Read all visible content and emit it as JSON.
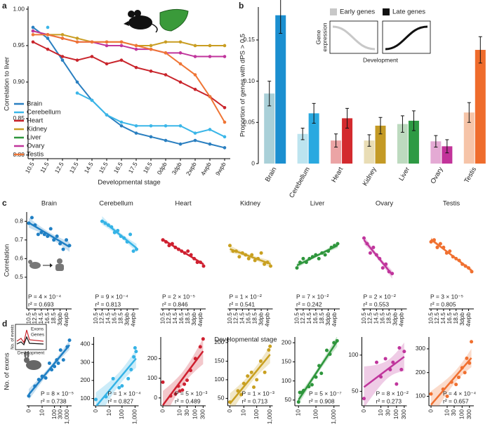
{
  "chart_data": [
    {
      "type": "line",
      "panel": "a",
      "y_label": "Correlation to liver",
      "x_label": "Developmental stage",
      "categories": [
        "10.5",
        "11.5",
        "12.5",
        "13.5",
        "14.5",
        "15.5",
        "16.5",
        "17.5",
        "18.5",
        "0dpb",
        "3dpb",
        "2wpb",
        "4wpb",
        "9wpb"
      ],
      "ylim": [
        0.795,
        1.0
      ],
      "yticks": [
        {
          "value": 0.8,
          "label": "0.80"
        },
        0.85,
        {
          "value": 0.9,
          "label": "0.90"
        },
        0.95,
        {
          "value": 1,
          "label": "1.00"
        }
      ],
      "legend": "lower left",
      "series": [
        {
          "name": "Brain",
          "color": "#2a7fc0",
          "values": [
            0.975,
            0.96,
            0.93,
            0.9,
            0.875,
            0.855,
            0.84,
            0.83,
            0.825,
            0.82,
            0.815,
            0.82,
            0.815,
            0.81
          ]
        },
        {
          "name": "Cerebellum",
          "color": "#3ab6e8",
          "values": [
            null,
            0.975,
            null,
            0.885,
            0.875,
            0.855,
            0.845,
            0.84,
            0.84,
            0.84,
            0.84,
            0.83,
            0.835,
            0.825
          ]
        },
        {
          "name": "Heart",
          "color": "#c9252c",
          "values": [
            0.955,
            0.945,
            0.935,
            0.93,
            0.935,
            0.925,
            0.93,
            0.92,
            0.915,
            0.91,
            0.9,
            0.89,
            0.88,
            0.865
          ]
        },
        {
          "name": "Kidney",
          "color": "#c99d22",
          "values": [
            0.97,
            0.965,
            0.965,
            0.96,
            0.955,
            0.955,
            0.955,
            0.95,
            0.95,
            0.955,
            0.955,
            0.95,
            0.95,
            0.95
          ]
        },
        {
          "name": "Liver",
          "color": "#2e963c",
          "values": [
            null,
            null,
            null,
            null,
            null,
            null,
            null,
            null,
            null,
            null,
            null,
            null,
            null,
            null
          ]
        },
        {
          "name": "Ovary",
          "color": "#c0359c",
          "values": [
            0.97,
            0.965,
            0.96,
            0.955,
            0.955,
            0.95,
            0.95,
            0.945,
            0.945,
            0.94,
            0.94,
            0.935,
            0.935,
            0.935
          ]
        },
        {
          "name": "Testis",
          "color": "#ef7535",
          "values": [
            0.965,
            0.965,
            0.96,
            0.955,
            0.955,
            0.955,
            0.955,
            0.95,
            0.945,
            0.94,
            0.925,
            0.91,
            0.88,
            0.845
          ]
        }
      ]
    },
    {
      "type": "bar",
      "panel": "b",
      "y_label": "Proportion of genes with dPS > 0.5",
      "categories": [
        "Brain",
        "Cerebellum",
        "Heart",
        "Kidney",
        "Liver",
        "Ovary",
        "Testis"
      ],
      "ylim": [
        0,
        0.19
      ],
      "yticks": [
        0,
        0.05,
        {
          "value": 0.1,
          "label": "0.10"
        },
        0.15
      ],
      "legend": "upper right",
      "inset": {
        "y_label": [
          "Gene",
          "expression"
        ],
        "x_label": "Development"
      },
      "series": [
        {
          "name": "Early genes",
          "color": "#c8c8c8",
          "values": [
            0.085,
            0.036,
            0.028,
            0.028,
            0.048,
            0.027,
            0.062
          ],
          "errors": [
            0.015,
            0.007,
            0.008,
            0.007,
            0.01,
            0.007,
            0.012
          ],
          "bar_colors": [
            "#a9d0d8",
            "#bde4ef",
            "#eba4a5",
            "#e9ddb5",
            "#bddabf",
            "#e4aad4",
            "#f6c4a8"
          ]
        },
        {
          "name": "Late genes",
          "color": "#111111",
          "values": [
            0.18,
            0.061,
            0.055,
            0.046,
            0.052,
            0.021,
            0.138
          ],
          "errors": [
            0.022,
            0.012,
            0.012,
            0.01,
            0.012,
            0.008,
            0.016
          ],
          "bar_colors": [
            "#1b8fd0",
            "#2aa9e0",
            "#d32a2e",
            "#c49a25",
            "#2e9a44",
            "#c2339a",
            "#ef6c2c"
          ]
        }
      ]
    },
    {
      "type": "scatter",
      "panel": "c",
      "y_label": "Correlation",
      "x_label": "Developmental stage",
      "categories": [
        "10.5",
        null,
        "12.5",
        null,
        "14.5",
        null,
        "16.5",
        null,
        "18.5",
        null,
        "3dpb",
        null,
        "4wpb",
        null
      ],
      "ylim": [
        0.33,
        0.85
      ],
      "yticks": [
        0.5,
        0.6,
        0.7,
        0.8
      ],
      "subplots": [
        {
          "title": "Brain",
          "color": "#1f7fc4",
          "values": [
            0.79,
            0.82,
            0.78,
            0.73,
            0.74,
            0.73,
            0.72,
            0.76,
            0.7,
            0.72,
            0.68,
            0.65,
            0.7,
            0.67
          ],
          "p_value": "P = 4 × 10⁻⁴",
          "r_squared": "r² = 0.693"
        },
        {
          "title": "Cerebellum",
          "color": "#35b3e6",
          "values": [
            null,
            null,
            0.8,
            0.79,
            0.78,
            0.77,
            0.74,
            0.75,
            0.72,
            0.71,
            0.69,
            0.73,
            0.64,
            0.65
          ],
          "p_value": "P = 9 × 10⁻⁴",
          "r_squared": "r² = 0.813"
        },
        {
          "title": "Heart",
          "color": "#cf2030",
          "values": [
            0.7,
            0.69,
            0.67,
            0.68,
            0.66,
            0.65,
            0.64,
            0.63,
            0.64,
            0.62,
            0.6,
            0.58,
            0.58,
            0.56
          ],
          "p_value": "P = 2 × 10⁻⁵",
          "r_squared": "r² = 0.846"
        },
        {
          "title": "Kidney",
          "color": "#c9a020",
          "values": [
            0.67,
            0.64,
            0.64,
            0.61,
            0.63,
            0.62,
            0.6,
            0.62,
            0.59,
            0.6,
            0.63,
            0.57,
            0.58,
            0.56
          ],
          "p_value": "P = 1 × 10⁻²",
          "r_squared": "r² = 0.541"
        },
        {
          "title": "Liver",
          "color": "#2e963c",
          "values": [
            0.55,
            0.58,
            0.6,
            0.58,
            0.6,
            0.61,
            0.62,
            0.6,
            0.63,
            0.62,
            0.64,
            0.66,
            0.67,
            0.68
          ],
          "p_value": "P = 7 × 10⁻²",
          "r_squared": "r² = 0.242"
        },
        {
          "title": "Ovary",
          "color": "#c0359c",
          "values": [
            0.71,
            0.68,
            0.63,
            0.66,
            0.62,
            0.6,
            0.55,
            0.57,
            0.53,
            0.52,
            null,
            null,
            null,
            null
          ],
          "p_value": "P = 2 × 10⁻²",
          "r_squared": "r² = 0.553"
        },
        {
          "title": "Testis",
          "color": "#f07030",
          "values": [
            0.69,
            0.7,
            0.66,
            0.68,
            0.66,
            0.63,
            0.64,
            0.61,
            0.6,
            0.59,
            0.57,
            0.56,
            0.55,
            0.53
          ],
          "p_value": "P = 3 × 10⁻⁵",
          "r_squared": "r² = 0.805"
        }
      ]
    },
    {
      "type": "scatter",
      "panel": "d",
      "y_label": "No. of exons",
      "xscale": "log",
      "inset": {
        "y_label": "No. of events",
        "lines": [
          "Exons",
          "Genes"
        ],
        "x_label": "Development"
      },
      "subplots": [
        {
          "color": "#1f7fc4",
          "x": [
            0,
            2,
            5,
            10,
            20,
            40,
            60,
            100,
            150,
            200,
            300,
            500,
            1000,
            1500
          ],
          "values": [
            60,
            90,
            110,
            120,
            115,
            160,
            140,
            150,
            170,
            160,
            200,
            170,
            210,
            230
          ],
          "xlim": [
            0,
            1500
          ],
          "xticks": [
            0,
            10,
            100,
            300,
            {
              "value": 1000,
              "label": "1,000"
            }
          ],
          "ylim": [
            30,
            240
          ],
          "p_value": "P = 8 × 10⁻⁵",
          "r_squared": "r² = 0.738"
        },
        {
          "color": "#35b3e6",
          "x": [
            0,
            5,
            20,
            60,
            100,
            300,
            500,
            800,
            1000,
            1200
          ],
          "values": [
            95,
            110,
            210,
            160,
            170,
            210,
            260,
            330,
            380,
            360
          ],
          "xlim": [
            0,
            1300
          ],
          "xticks": [
            0,
            10,
            100,
            {
              "value": 1000,
              "label": "1,000"
            }
          ],
          "ylim": [
            60,
            440
          ],
          "yticks": [
            100,
            200,
            300,
            400
          ],
          "p_value": "P = 1 × 10⁻⁴",
          "r_squared": "r² = 0.827"
        },
        {
          "color": "#cf2030",
          "x": [
            0,
            2,
            5,
            8,
            10,
            15,
            20,
            30,
            50,
            100,
            200,
            300
          ],
          "values": [
            80,
            10,
            20,
            60,
            35,
            40,
            70,
            90,
            140,
            200,
            260,
            300
          ],
          "xlim": [
            0,
            320
          ],
          "xticks": [
            0,
            10,
            30,
            100,
            300
          ],
          "ylim": [
            -40,
            310
          ],
          "yticks": [
            0,
            100,
            200
          ],
          "p_value": "P = 5 × 10⁻³",
          "r_squared": "r² = 0.489"
        },
        {
          "color": "#c9a020",
          "x": [
            0,
            3,
            6,
            10,
            20,
            40,
            60,
            100,
            200,
            400,
            800,
            1000
          ],
          "values": [
            40,
            70,
            60,
            90,
            110,
            120,
            80,
            100,
            150,
            120,
            180,
            190
          ],
          "xlim": [
            0,
            1100
          ],
          "xticks": [
            0,
            10,
            100,
            {
              "value": 1000,
              "label": "1,000"
            }
          ],
          "ylim": [
            30,
            215
          ],
          "yticks": [
            50,
            100,
            150,
            200
          ],
          "p_value": "P = 1 × 10⁻³",
          "r_squared": "r² = 0.713"
        },
        {
          "color": "#2e963c",
          "x": [
            10,
            12,
            15,
            20,
            40,
            60,
            100,
            150,
            200,
            400,
            600,
            1000,
            1500
          ],
          "values": [
            45,
            70,
            70,
            75,
            85,
            90,
            110,
            140,
            120,
            180,
            170,
            200,
            205
          ],
          "xlim": [
            8,
            1600
          ],
          "xticks": [
            10,
            100,
            {
              "value": 1000,
              "label": "1,000"
            }
          ],
          "ylim": [
            35,
            215
          ],
          "yticks": [
            50,
            100,
            150,
            200
          ],
          "p_value": "P = 5 × 10⁻⁷",
          "r_squared": "r² = 0.908"
        },
        {
          "color": "#c0359c",
          "x": [
            0,
            5,
            10,
            20,
            40,
            60,
            100,
            150,
            200,
            300
          ],
          "values": [
            40,
            90,
            70,
            95,
            80,
            90,
            60,
            110,
            80,
            105
          ],
          "xlim": [
            0,
            320
          ],
          "xticks": [
            0,
            10,
            30,
            100,
            300
          ],
          "ylim": [
            30,
            125
          ],
          "yticks": [
            50,
            100
          ],
          "p_value": "P = 8 × 10⁻²",
          "r_squared": "r² = 0.273"
        },
        {
          "color": "#f07030",
          "x": [
            0,
            5,
            10,
            20,
            40,
            60,
            100,
            150,
            200,
            300,
            400
          ],
          "values": [
            110,
            130,
            100,
            160,
            150,
            180,
            220,
            200,
            260,
            240,
            330
          ],
          "xlim": [
            0,
            420
          ],
          "xticks": [
            0,
            10,
            30,
            100,
            300
          ],
          "ylim": [
            60,
            350
          ],
          "yticks": [
            100,
            200,
            300
          ],
          "p_value": "P = 4 × 10⁻⁴",
          "r_squared": "r² = 0.657"
        }
      ]
    }
  ]
}
